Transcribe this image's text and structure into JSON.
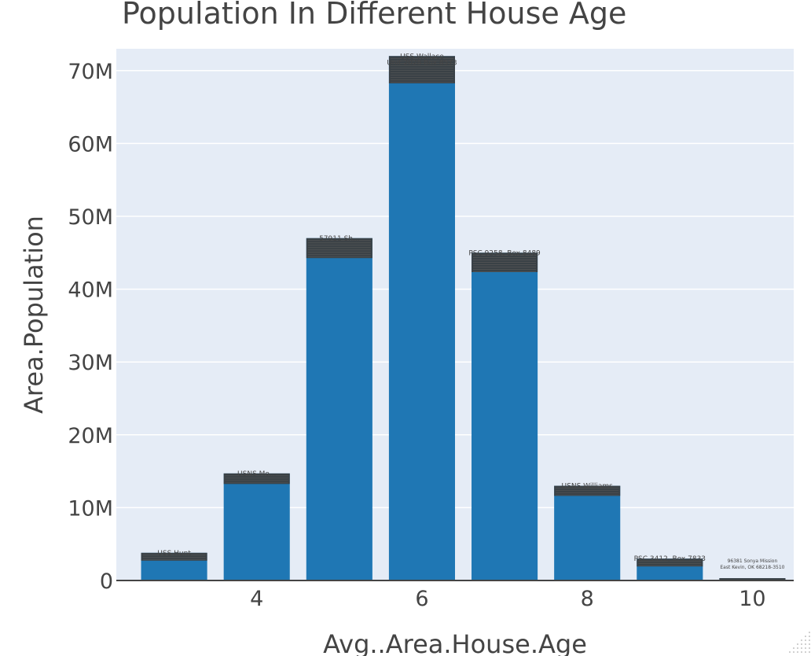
{
  "chart_data": {
    "type": "bar",
    "title": "Population In Different House Age",
    "xlabel": "Avg..Area.House.Age",
    "ylabel": "Area.Population",
    "x": [
      3,
      4,
      5,
      6,
      7,
      8,
      9,
      10
    ],
    "values": [
      3800000,
      14700000,
      47000000,
      72000000,
      45000000,
      13000000,
      3000000,
      320000
    ],
    "xlim": [
      2.3,
      10.5
    ],
    "ylim": [
      0,
      73000000
    ],
    "x_ticks": [
      4,
      6,
      8,
      10
    ],
    "x_tick_labels": [
      "4",
      "6",
      "8",
      "10"
    ],
    "y_ticks": [
      0,
      10000000,
      20000000,
      30000000,
      40000000,
      50000000,
      60000000,
      70000000
    ],
    "y_tick_labels": [
      "0",
      "10M",
      "20M",
      "30M",
      "40M",
      "50M",
      "60M",
      "70M"
    ],
    "grid": true,
    "bar_color": "#1f77b4",
    "plot_bg": "#e5ecf6",
    "bar_labels": [
      {
        "x": 3,
        "lines": [
          "USS Hunt"
        ]
      },
      {
        "x": 4,
        "lines": [
          "USNS Mo..."
        ]
      },
      {
        "x": 5,
        "lines": [
          "57911 Sh..."
        ]
      },
      {
        "x": 6,
        "lines": [
          "USS Wallace",
          "Unit 2028 Box 8573"
        ]
      },
      {
        "x": 7,
        "lines": [
          "PSC 9258, Box 8489"
        ]
      },
      {
        "x": 8,
        "lines": [
          "USNS Williams"
        ]
      },
      {
        "x": 9,
        "lines": [
          "PSC 3412, Box 7833"
        ]
      },
      {
        "x": 10,
        "lines": [
          "96381 Sonya Mission",
          "East Kevin, OK 68218-3510"
        ]
      }
    ]
  }
}
